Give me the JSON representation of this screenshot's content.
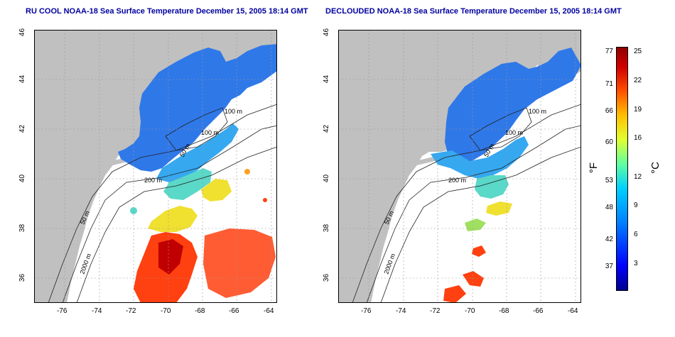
{
  "panels": [
    {
      "title": "RU COOL NOAA-18 Sea Surface Temperature December 15, 2005 18:14 GMT",
      "mode": "raw"
    },
    {
      "title": "DECLOUDED NOAA-18 Sea Surface Temperature December 15, 2005 18:14 GMT",
      "mode": "declouded"
    }
  ],
  "axes": {
    "lon_ticks": [
      "-76",
      "-74",
      "-72",
      "-70",
      "-68",
      "-66",
      "-64"
    ],
    "lat_ticks": [
      "36",
      "38",
      "40",
      "42",
      "44",
      "46"
    ],
    "lon_range": [
      -77.2,
      -63.1
    ],
    "lat_range": [
      35.0,
      46.0
    ]
  },
  "isobath_labels": [
    "200 m",
    "50 m",
    "100 m",
    "100 m",
    "50 m",
    "2000 m"
  ],
  "colorbar": {
    "fahrenheit_ticks": [
      "77",
      "71",
      "66",
      "60",
      "53",
      "48",
      "42",
      "37"
    ],
    "celsius_ticks": [
      "25",
      "22",
      "19",
      "16",
      "12",
      "9",
      "6",
      "3"
    ],
    "unit_f": "°F",
    "unit_c": "°C",
    "colors": [
      "#00008c",
      "#0000ff",
      "#0080ff",
      "#00d0ff",
      "#60ffa0",
      "#e0ff30",
      "#ffc000",
      "#ff5000",
      "#d00000",
      "#900000"
    ]
  },
  "colors": {
    "land": "#c0c0c0",
    "cold": "#2f78e8",
    "cool": "#36a8f0",
    "mild": "#5ad8c8",
    "warm": "#f0e030",
    "hot": "#ff4010",
    "grid": "#9a9a9a"
  }
}
